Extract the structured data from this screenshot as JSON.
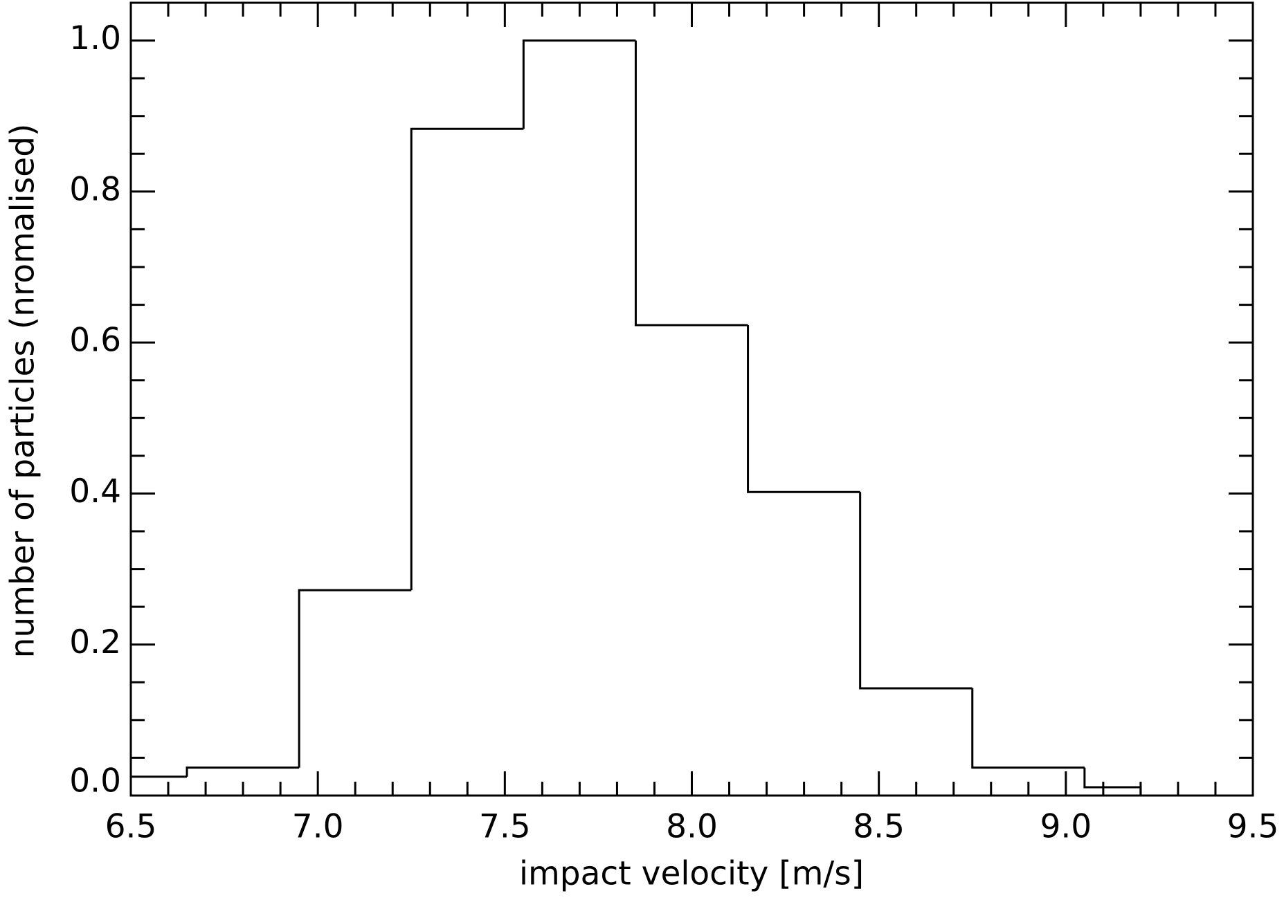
{
  "chart_data": {
    "type": "histogram",
    "xlabel": "impact velocity [m/s]",
    "ylabel": "number of particles (nromalised)",
    "bins": [
      6.5,
      6.65,
      6.95,
      7.25,
      7.55,
      7.85,
      8.15,
      8.45,
      8.75,
      9.05,
      9.2
    ],
    "values": [
      0.025,
      0.037,
      0.272,
      0.883,
      1.0,
      0.623,
      0.402,
      0.142,
      0.037,
      0.011
    ],
    "color": "#000000",
    "xlim": [
      6.5,
      9.5
    ],
    "xticks": [
      {
        "value": 6.5,
        "label": "6.5"
      },
      {
        "value": 7,
        "label": "7.0"
      },
      {
        "value": 7.5,
        "label": "7.5"
      },
      {
        "value": 8,
        "label": "8.0"
      },
      {
        "value": 8.5,
        "label": "8.5"
      },
      {
        "value": 9,
        "label": "9.0"
      },
      {
        "value": 9.5,
        "label": "9.5"
      }
    ],
    "ylim": [
      0,
      1.05
    ],
    "yticks": [
      {
        "value": 0,
        "label": "0.0"
      },
      {
        "value": 0.2,
        "label": "0.2"
      },
      {
        "value": 0.4,
        "label": "0.4"
      },
      {
        "value": 0.6,
        "label": "0.6"
      },
      {
        "value": 0.8,
        "label": "0.8"
      },
      {
        "value": 1,
        "label": "1.0"
      }
    ]
  }
}
